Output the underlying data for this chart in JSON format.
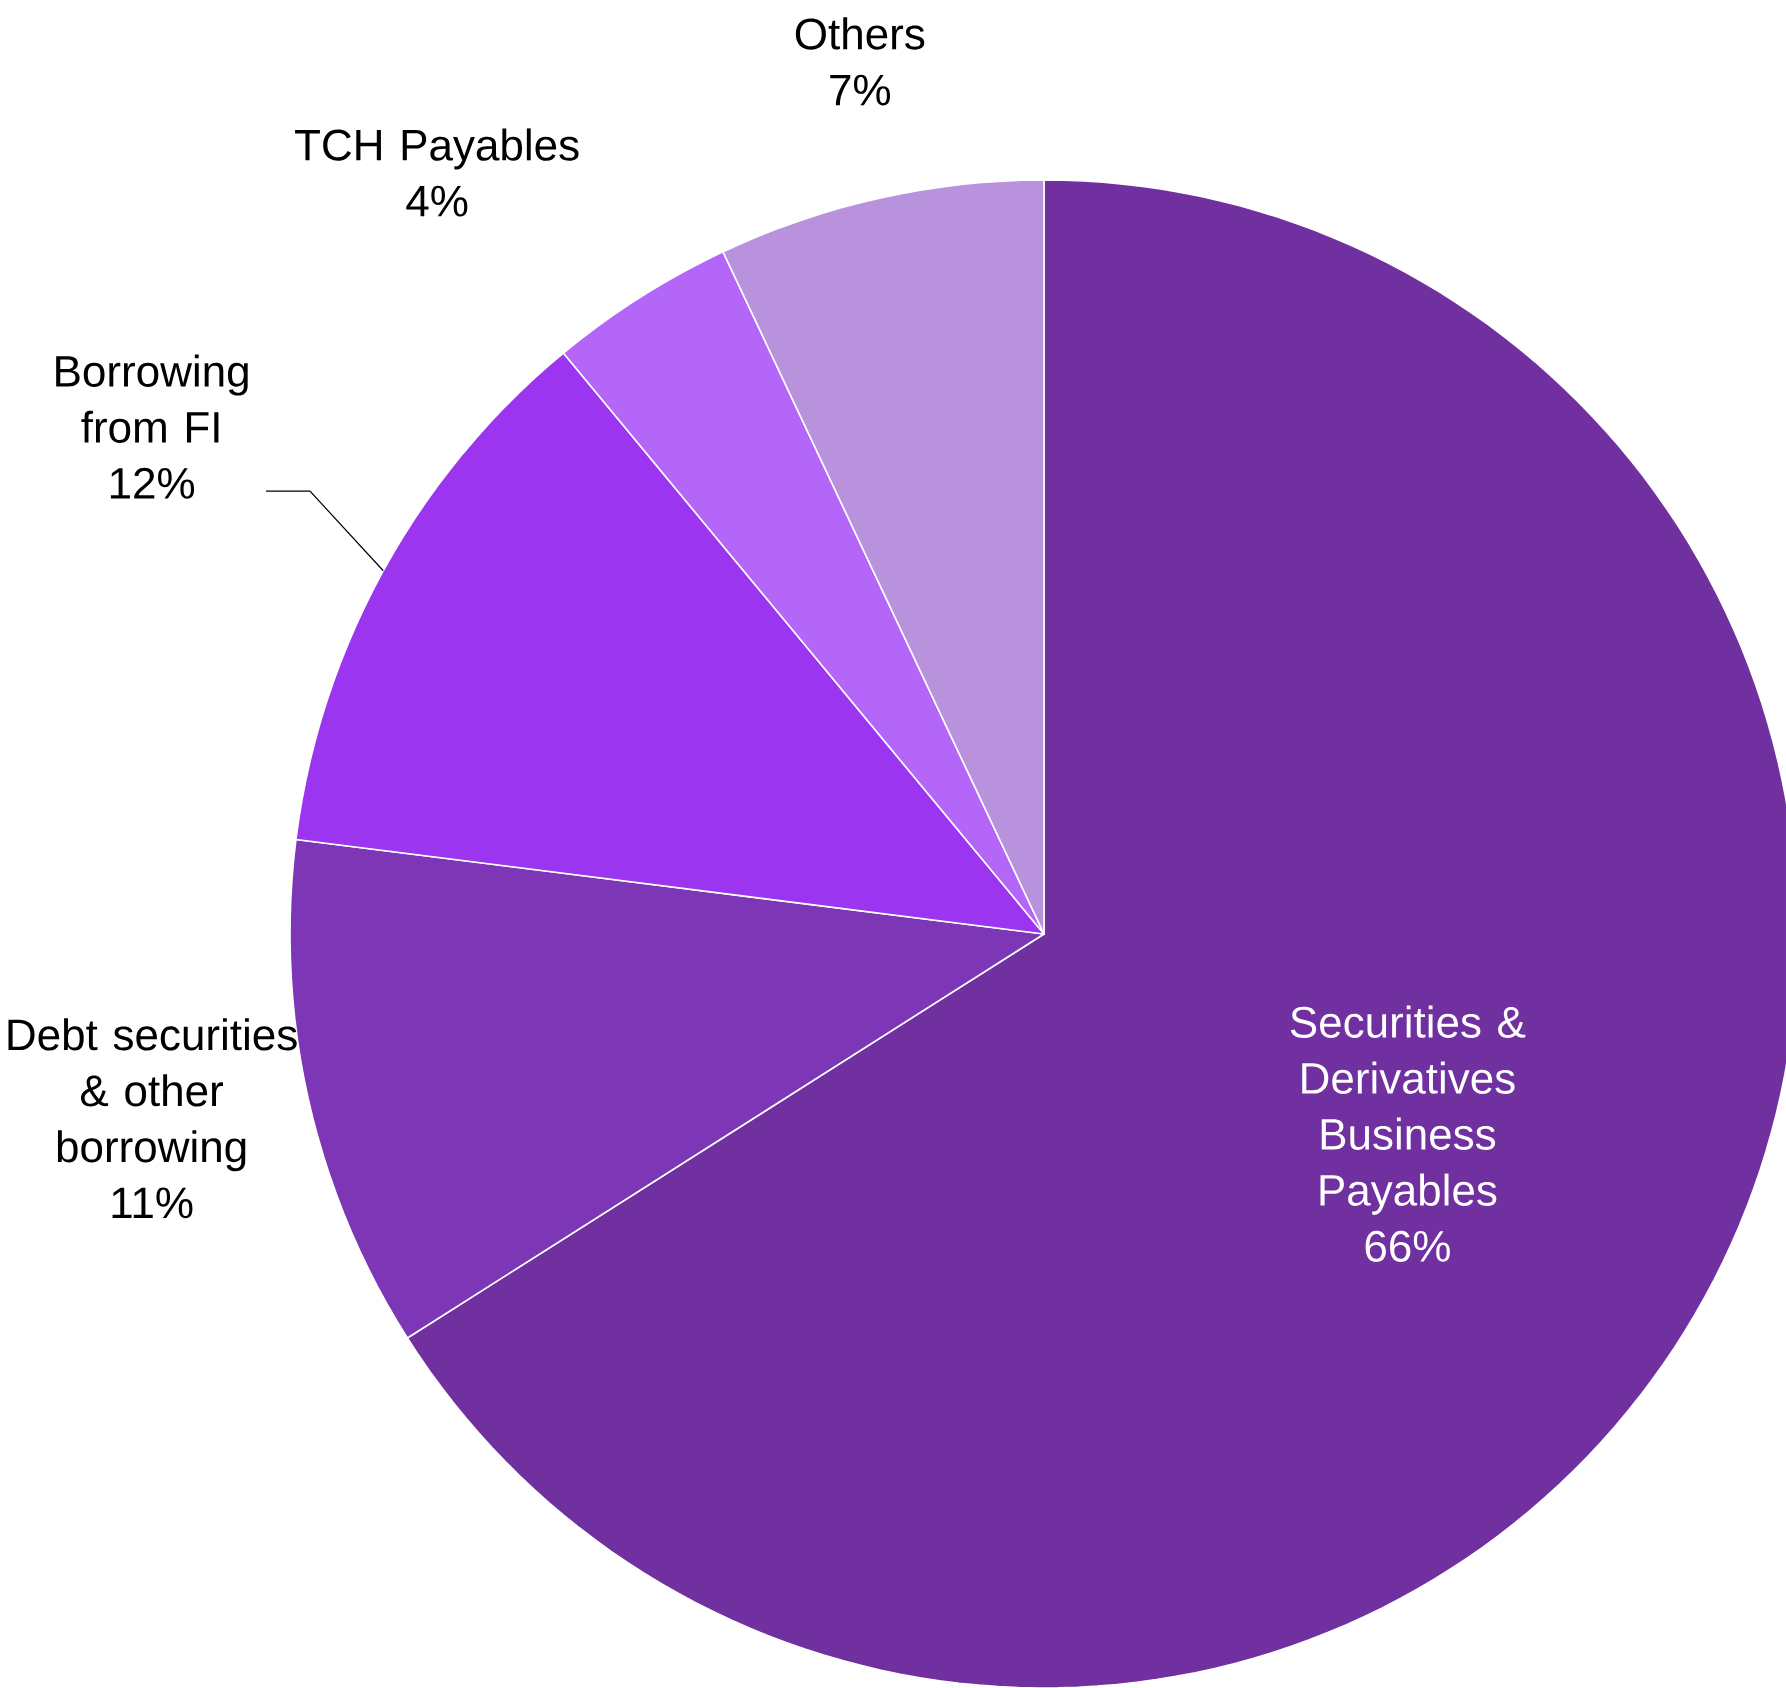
{
  "chart_data": {
    "type": "pie",
    "categories": [
      "Securities & Derivatives Business Payables",
      "Debt securities & other borrowing",
      "Borrowing from FI",
      "TCH Payables",
      "Others"
    ],
    "values": [
      66,
      11,
      12,
      4,
      7
    ],
    "value_labels": [
      "66%",
      "11%",
      "12%",
      "4%",
      "7%"
    ],
    "colors": [
      "#7030a0",
      "#7c36b6",
      "#9b35f0",
      "#b366f7",
      "#b992de"
    ]
  }
}
